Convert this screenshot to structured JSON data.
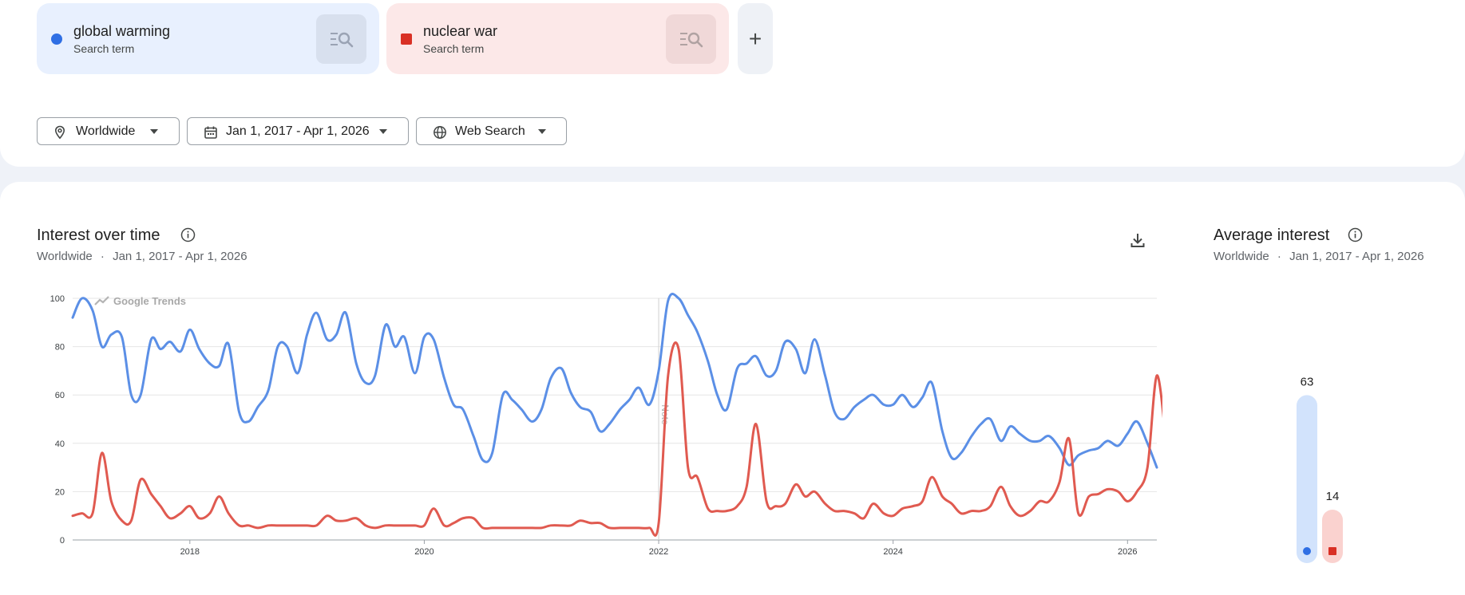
{
  "terms": [
    {
      "name": "global warming",
      "subtitle": "Search term",
      "color": "#2f6fe4",
      "marker": "circle"
    },
    {
      "name": "nuclear war",
      "subtitle": "Search term",
      "color": "#d93025",
      "marker": "square"
    }
  ],
  "icons": {
    "add_term": "plus-icon",
    "term_action": "compare-search-icon",
    "location": "pin-icon",
    "date": "calendar-icon",
    "search_type": "globe-icon",
    "download": "download-icon",
    "info": "info-icon"
  },
  "add_label": "+",
  "filters": {
    "location": "Worldwide",
    "date_range": "Jan 1, 2017 - Apr 1, 2026",
    "search_type": "Web Search"
  },
  "interest": {
    "title": "Interest over time",
    "location": "Worldwide",
    "separator": "·",
    "date_range": "Jan 1, 2017 - Apr 1, 2026"
  },
  "average": {
    "title": "Average interest",
    "location": "Worldwide",
    "separator": "·",
    "date_range": "Jan 1, 2017 - Apr 1, 2026"
  },
  "chart_data": [
    {
      "type": "line",
      "watermark": "Google Trends",
      "note_label": "Note",
      "note_x": 2022.0,
      "xlim": [
        2017.0,
        2026.25
      ],
      "ylim": [
        0,
        100
      ],
      "yticks": [
        0,
        20,
        40,
        60,
        80,
        100
      ],
      "xticks": [
        {
          "value": 2018,
          "label": "2018"
        },
        {
          "value": 2020,
          "label": "2020"
        },
        {
          "value": 2022,
          "label": "2022"
        },
        {
          "value": 2024,
          "label": "2024"
        },
        {
          "value": 2026,
          "label": "2026"
        }
      ],
      "grid": true,
      "series": [
        {
          "color": "#5b8fe6",
          "points": [
            [
              2017.0,
              92
            ],
            [
              2017.08,
              100
            ],
            [
              2017.17,
              95
            ],
            [
              2017.25,
              80
            ],
            [
              2017.33,
              85
            ],
            [
              2017.42,
              84
            ],
            [
              2017.5,
              60
            ],
            [
              2017.58,
              60
            ],
            [
              2017.67,
              83
            ],
            [
              2017.75,
              79
            ],
            [
              2017.83,
              82
            ],
            [
              2017.92,
              78
            ],
            [
              2018.0,
              87
            ],
            [
              2018.08,
              79
            ],
            [
              2018.17,
              73
            ],
            [
              2018.25,
              72
            ],
            [
              2018.33,
              81
            ],
            [
              2018.42,
              53
            ],
            [
              2018.5,
              49
            ],
            [
              2018.58,
              55
            ],
            [
              2018.67,
              62
            ],
            [
              2018.75,
              80
            ],
            [
              2018.83,
              80
            ],
            [
              2018.92,
              69
            ],
            [
              2019.0,
              85
            ],
            [
              2019.08,
              94
            ],
            [
              2019.17,
              83
            ],
            [
              2019.25,
              85
            ],
            [
              2019.33,
              94
            ],
            [
              2019.42,
              73
            ],
            [
              2019.5,
              65
            ],
            [
              2019.58,
              68
            ],
            [
              2019.67,
              89
            ],
            [
              2019.75,
              80
            ],
            [
              2019.83,
              84
            ],
            [
              2019.92,
              69
            ],
            [
              2020.0,
              84
            ],
            [
              2020.08,
              83
            ],
            [
              2020.17,
              67
            ],
            [
              2020.25,
              56
            ],
            [
              2020.33,
              54
            ],
            [
              2020.42,
              43
            ],
            [
              2020.5,
              33
            ],
            [
              2020.58,
              36
            ],
            [
              2020.67,
              60
            ],
            [
              2020.75,
              58
            ],
            [
              2020.83,
              54
            ],
            [
              2020.92,
              49
            ],
            [
              2021.0,
              54
            ],
            [
              2021.08,
              67
            ],
            [
              2021.17,
              71
            ],
            [
              2021.25,
              61
            ],
            [
              2021.33,
              55
            ],
            [
              2021.42,
              53
            ],
            [
              2021.5,
              45
            ],
            [
              2021.58,
              48
            ],
            [
              2021.67,
              54
            ],
            [
              2021.75,
              58
            ],
            [
              2021.83,
              63
            ],
            [
              2021.92,
              56
            ],
            [
              2022.0,
              70
            ],
            [
              2022.08,
              99
            ],
            [
              2022.17,
              100
            ],
            [
              2022.25,
              93
            ],
            [
              2022.33,
              86
            ],
            [
              2022.42,
              74
            ],
            [
              2022.5,
              60
            ],
            [
              2022.58,
              54
            ],
            [
              2022.67,
              71
            ],
            [
              2022.75,
              73
            ],
            [
              2022.83,
              76
            ],
            [
              2022.92,
              68
            ],
            [
              2023.0,
              70
            ],
            [
              2023.08,
              82
            ],
            [
              2023.17,
              79
            ],
            [
              2023.25,
              69
            ],
            [
              2023.33,
              83
            ],
            [
              2023.42,
              68
            ],
            [
              2023.5,
              53
            ],
            [
              2023.58,
              50
            ],
            [
              2023.67,
              55
            ],
            [
              2023.75,
              58
            ],
            [
              2023.83,
              60
            ],
            [
              2023.92,
              56
            ],
            [
              2024.0,
              56
            ],
            [
              2024.08,
              60
            ],
            [
              2024.17,
              55
            ],
            [
              2024.25,
              59
            ],
            [
              2024.33,
              65
            ],
            [
              2024.42,
              45
            ],
            [
              2024.5,
              34
            ],
            [
              2024.58,
              36
            ],
            [
              2024.67,
              43
            ],
            [
              2024.75,
              48
            ],
            [
              2024.83,
              50
            ],
            [
              2024.92,
              41
            ],
            [
              2025.0,
              47
            ],
            [
              2025.08,
              44
            ],
            [
              2025.17,
              41
            ],
            [
              2025.25,
              41
            ],
            [
              2025.33,
              43
            ],
            [
              2025.42,
              38
            ],
            [
              2025.5,
              31
            ],
            [
              2025.58,
              35
            ],
            [
              2025.67,
              37
            ],
            [
              2025.75,
              38
            ],
            [
              2025.83,
              41
            ],
            [
              2025.92,
              39
            ],
            [
              2026.0,
              44
            ],
            [
              2026.08,
              49
            ],
            [
              2026.17,
              40
            ],
            [
              2026.25,
              30
            ]
          ]
        },
        {
          "color": "#e05a50",
          "points": [
            [
              2017.0,
              10
            ],
            [
              2017.08,
              11
            ],
            [
              2017.17,
              11
            ],
            [
              2017.25,
              36
            ],
            [
              2017.33,
              16
            ],
            [
              2017.42,
              8
            ],
            [
              2017.5,
              8
            ],
            [
              2017.58,
              25
            ],
            [
              2017.67,
              19
            ],
            [
              2017.75,
              14
            ],
            [
              2017.83,
              9
            ],
            [
              2017.92,
              11
            ],
            [
              2018.0,
              14
            ],
            [
              2018.08,
              9
            ],
            [
              2018.17,
              11
            ],
            [
              2018.25,
              18
            ],
            [
              2018.33,
              11
            ],
            [
              2018.42,
              6
            ],
            [
              2018.5,
              6
            ],
            [
              2018.58,
              5
            ],
            [
              2018.67,
              6
            ],
            [
              2018.75,
              6
            ],
            [
              2018.83,
              6
            ],
            [
              2018.92,
              6
            ],
            [
              2019.0,
              6
            ],
            [
              2019.08,
              6
            ],
            [
              2019.17,
              10
            ],
            [
              2019.25,
              8
            ],
            [
              2019.33,
              8
            ],
            [
              2019.42,
              9
            ],
            [
              2019.5,
              6
            ],
            [
              2019.58,
              5
            ],
            [
              2019.67,
              6
            ],
            [
              2019.75,
              6
            ],
            [
              2019.83,
              6
            ],
            [
              2019.92,
              6
            ],
            [
              2020.0,
              6
            ],
            [
              2020.08,
              13
            ],
            [
              2020.17,
              6
            ],
            [
              2020.25,
              7
            ],
            [
              2020.33,
              9
            ],
            [
              2020.42,
              9
            ],
            [
              2020.5,
              5
            ],
            [
              2020.58,
              5
            ],
            [
              2020.67,
              5
            ],
            [
              2020.75,
              5
            ],
            [
              2020.83,
              5
            ],
            [
              2020.92,
              5
            ],
            [
              2021.0,
              5
            ],
            [
              2021.08,
              6
            ],
            [
              2021.17,
              6
            ],
            [
              2021.25,
              6
            ],
            [
              2021.33,
              8
            ],
            [
              2021.42,
              7
            ],
            [
              2021.5,
              7
            ],
            [
              2021.58,
              5
            ],
            [
              2021.67,
              5
            ],
            [
              2021.75,
              5
            ],
            [
              2021.83,
              5
            ],
            [
              2021.92,
              5
            ],
            [
              2022.0,
              7
            ],
            [
              2022.08,
              68
            ],
            [
              2022.17,
              79
            ],
            [
              2022.25,
              30
            ],
            [
              2022.33,
              26
            ],
            [
              2022.42,
              13
            ],
            [
              2022.5,
              12
            ],
            [
              2022.58,
              12
            ],
            [
              2022.67,
              14
            ],
            [
              2022.75,
              22
            ],
            [
              2022.83,
              48
            ],
            [
              2022.92,
              16
            ],
            [
              2023.0,
              14
            ],
            [
              2023.08,
              15
            ],
            [
              2023.17,
              23
            ],
            [
              2023.25,
              18
            ],
            [
              2023.33,
              20
            ],
            [
              2023.42,
              15
            ],
            [
              2023.5,
              12
            ],
            [
              2023.58,
              12
            ],
            [
              2023.67,
              11
            ],
            [
              2023.75,
              9
            ],
            [
              2023.83,
              15
            ],
            [
              2023.92,
              11
            ],
            [
              2024.0,
              10
            ],
            [
              2024.08,
              13
            ],
            [
              2024.17,
              14
            ],
            [
              2024.25,
              16
            ],
            [
              2024.33,
              26
            ],
            [
              2024.42,
              18
            ],
            [
              2024.5,
              15
            ],
            [
              2024.58,
              11
            ],
            [
              2024.67,
              12
            ],
            [
              2024.75,
              12
            ],
            [
              2024.83,
              14
            ],
            [
              2024.92,
              22
            ],
            [
              2025.0,
              14
            ],
            [
              2025.08,
              10
            ],
            [
              2025.17,
              12
            ],
            [
              2025.25,
              16
            ],
            [
              2025.33,
              16
            ],
            [
              2025.42,
              24
            ],
            [
              2025.5,
              42
            ],
            [
              2025.58,
              11
            ],
            [
              2025.67,
              18
            ],
            [
              2025.75,
              19
            ],
            [
              2025.83,
              21
            ],
            [
              2025.92,
              20
            ],
            [
              2026.0,
              16
            ],
            [
              2026.08,
              20
            ],
            [
              2026.17,
              30
            ],
            [
              2026.25,
              68
            ],
            [
              2026.33,
              40
            ]
          ]
        }
      ]
    },
    {
      "type": "bar",
      "categories": [
        "global warming",
        "nuclear war"
      ],
      "values": [
        63,
        14
      ],
      "colors": [
        "#d2e3fc",
        "#fad2cf"
      ],
      "marker_colors": [
        "#2f6fe4",
        "#d93025"
      ],
      "ylim": [
        0,
        100
      ]
    }
  ]
}
